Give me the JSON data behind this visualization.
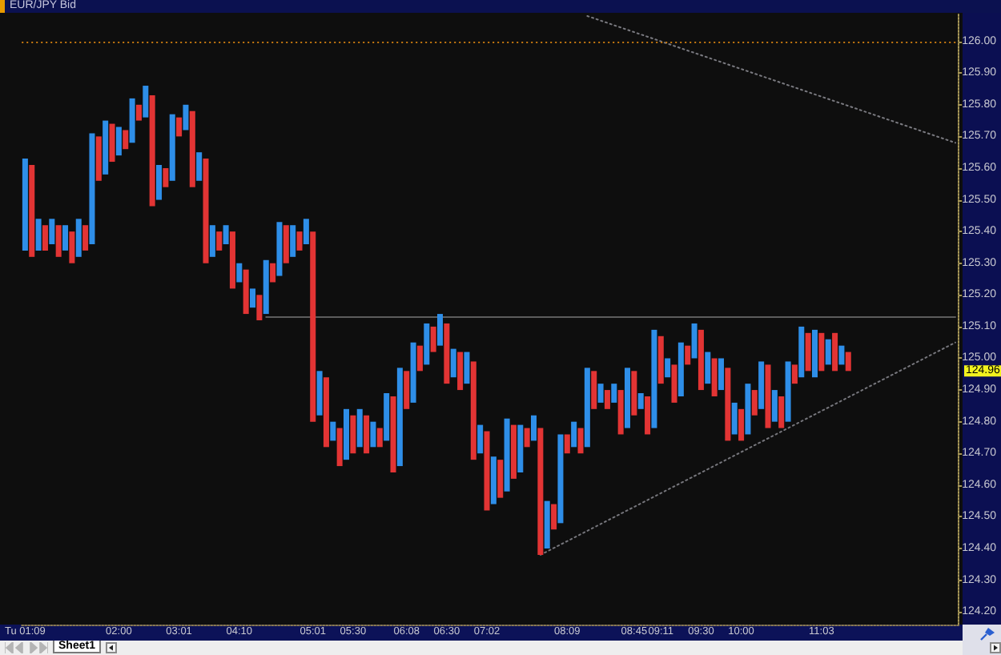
{
  "chart_data": {
    "type": "bar",
    "title": "EUR/JPY Bid",
    "categories": [
      "Tu 01:09",
      null,
      null,
      null,
      null,
      null,
      null,
      null,
      null,
      null,
      null,
      null,
      null,
      null,
      "02:00",
      null,
      null,
      null,
      null,
      null,
      null,
      null,
      null,
      "03:01",
      null,
      null,
      null,
      null,
      null,
      null,
      null,
      null,
      "04:10",
      null,
      null,
      null,
      null,
      null,
      null,
      null,
      null,
      null,
      null,
      "05:01",
      null,
      null,
      null,
      null,
      null,
      "05:30",
      null,
      null,
      null,
      null,
      null,
      null,
      null,
      "06:08",
      null,
      null,
      null,
      null,
      null,
      "06:30",
      null,
      null,
      null,
      null,
      null,
      "07:02",
      null,
      null,
      null,
      null,
      null,
      null,
      null,
      null,
      null,
      null,
      null,
      "08:09",
      null,
      null,
      null,
      null,
      null,
      null,
      null,
      null,
      null,
      "08:45",
      null,
      null,
      null,
      "09:11",
      null,
      null,
      null,
      null,
      null,
      "09:30",
      null,
      null,
      null,
      null,
      null,
      "10:00",
      null,
      null,
      null,
      null,
      null,
      null,
      null,
      null,
      null,
      null,
      null,
      "11:03",
      null,
      null,
      null,
      null,
      null,
      null,
      null,
      null,
      null,
      null,
      null,
      null,
      null,
      null,
      null,
      null,
      null,
      null,
      null,
      null
    ],
    "series": [
      {
        "type": "line",
        "color": "#7a7a80",
        "line_style": "dotted",
        "values": [
          null,
          null,
          null,
          null,
          null,
          null,
          null,
          null,
          null,
          null,
          null,
          null,
          null,
          null,
          null,
          null,
          null,
          null,
          null,
          null,
          null,
          null,
          null,
          null,
          null,
          null,
          null,
          null,
          null,
          null,
          null,
          null,
          null,
          null,
          null,
          null,
          null,
          null,
          null,
          null,
          null,
          null,
          null,
          null,
          null,
          null,
          null,
          null,
          null,
          null,
          null,
          null,
          null,
          null,
          null,
          null,
          null,
          null,
          null,
          null,
          null,
          null,
          null,
          null,
          null,
          null,
          null,
          null,
          null,
          null,
          null,
          null,
          null,
          null,
          null,
          null,
          null,
          null,
          null,
          null,
          null,
          null,
          null,
          null,
          126.08,
          null,
          null,
          null,
          null,
          null,
          null,
          null,
          null,
          null,
          null,
          null,
          null,
          null,
          null,
          null,
          null,
          null,
          null,
          null,
          null,
          null,
          null,
          null,
          null,
          null,
          null,
          null,
          null,
          null,
          null,
          null,
          null,
          null,
          null,
          null,
          null,
          null,
          null,
          null,
          null,
          null,
          null,
          null,
          null,
          null,
          null,
          null,
          null,
          null,
          null,
          null,
          null,
          null,
          null,
          125.68
        ]
      },
      {
        "type": "line",
        "color": "#76767c",
        "line_style": "dotted",
        "values": [
          null,
          null,
          null,
          null,
          null,
          null,
          null,
          null,
          null,
          null,
          null,
          null,
          null,
          null,
          null,
          null,
          null,
          null,
          null,
          null,
          null,
          null,
          null,
          null,
          null,
          null,
          null,
          null,
          null,
          null,
          null,
          null,
          null,
          null,
          null,
          null,
          null,
          null,
          null,
          null,
          null,
          null,
          null,
          null,
          null,
          null,
          null,
          null,
          null,
          null,
          null,
          null,
          null,
          null,
          null,
          null,
          null,
          null,
          null,
          null,
          null,
          null,
          null,
          null,
          null,
          null,
          null,
          null,
          null,
          null,
          null,
          null,
          null,
          null,
          null,
          null,
          null,
          124.38,
          null,
          null,
          null,
          null,
          null,
          null,
          null,
          null,
          null,
          null,
          null,
          null,
          null,
          null,
          null,
          null,
          null,
          null,
          null,
          null,
          null,
          null,
          null,
          null,
          null,
          null,
          null,
          null,
          null,
          null,
          null,
          null,
          null,
          null,
          null,
          null,
          null,
          null,
          null,
          null,
          null,
          null,
          null,
          null,
          null,
          null,
          null,
          null,
          null,
          null,
          null,
          null,
          null,
          null,
          null,
          null,
          null,
          null,
          null,
          null,
          null,
          125.05
        ]
      },
      {
        "type": "line",
        "color": "#5c5c5c",
        "values": [
          null,
          null,
          null,
          null,
          null,
          null,
          null,
          null,
          null,
          null,
          null,
          null,
          null,
          null,
          null,
          null,
          null,
          null,
          null,
          null,
          null,
          null,
          null,
          null,
          null,
          null,
          null,
          null,
          null,
          null,
          null,
          null,
          null,
          null,
          null,
          null,
          125.13,
          null,
          null,
          null,
          null,
          null,
          null,
          null,
          null,
          null,
          null,
          null,
          null,
          null,
          null,
          null,
          null,
          null,
          null,
          null,
          null,
          null,
          null,
          null,
          null,
          null,
          null,
          null,
          null,
          null,
          null,
          null,
          null,
          null,
          null,
          null,
          null,
          null,
          null,
          null,
          null,
          null,
          null,
          null,
          null,
          null,
          null,
          null,
          null,
          null,
          null,
          null,
          null,
          null,
          null,
          null,
          null,
          null,
          null,
          null,
          null,
          null,
          null,
          null,
          null,
          null,
          null,
          null,
          null,
          null,
          null,
          null,
          null,
          null,
          null,
          null,
          null,
          null,
          null,
          null,
          null,
          null,
          null,
          null,
          null,
          null,
          null,
          null,
          null,
          null,
          null,
          null,
          null,
          null,
          null,
          null,
          null,
          null,
          null,
          null,
          null,
          null,
          null,
          125.13
        ]
      },
      {
        "color": "#2e8ee8",
        "base": [
          125.34,
          null,
          125.34,
          null,
          125.36,
          null,
          125.34,
          null,
          125.32,
          null,
          125.36,
          null,
          125.58,
          null,
          125.64,
          null,
          125.68,
          null,
          125.76,
          null,
          125.5,
          null,
          125.56,
          null,
          125.72,
          null,
          125.56,
          null,
          125.32,
          null,
          125.36,
          null,
          125.24,
          null,
          125.16,
          null,
          125.14,
          null,
          125.26,
          null,
          125.32,
          null,
          125.36,
          null,
          124.82,
          null,
          124.74,
          null,
          124.68,
          null,
          124.72,
          null,
          124.72,
          null,
          124.74,
          null,
          124.66,
          null,
          124.86,
          null,
          124.98,
          null,
          125.04,
          null,
          124.94,
          null,
          124.92,
          null,
          124.7,
          null,
          124.54,
          null,
          124.58,
          null,
          124.64,
          null,
          124.74,
          null,
          124.4,
          null,
          124.48,
          null,
          124.72,
          null,
          124.72,
          null,
          124.86,
          null,
          124.86,
          null,
          124.78,
          null,
          124.84,
          null,
          124.78,
          null,
          124.94,
          null,
          124.88,
          null,
          125,
          null,
          124.92,
          null,
          124.9,
          null,
          124.76,
          null,
          124.76,
          null,
          124.84,
          null,
          124.8,
          null,
          124.8,
          null,
          124.94,
          null,
          124.94,
          null,
          124.98,
          null,
          124.98,
          null,
          null,
          null,
          null,
          null,
          null,
          null,
          null,
          null,
          null,
          null,
          null,
          null,
          null,
          null,
          null,
          null
        ],
        "values": [
          0.29,
          null,
          0.1,
          null,
          0.08,
          null,
          0.08,
          null,
          0.12,
          null,
          0.35,
          null,
          0.17,
          null,
          0.09,
          null,
          0.14,
          null,
          0.1,
          null,
          0.11,
          null,
          0.21,
          null,
          0.08,
          null,
          0.09,
          null,
          0.1,
          null,
          0.06,
          null,
          0.06,
          null,
          0.06,
          null,
          0.17,
          null,
          0.17,
          null,
          0.1,
          null,
          0.08,
          null,
          0.14,
          null,
          0.06,
          null,
          0.16,
          null,
          0.12,
          null,
          0.08,
          null,
          0.15,
          null,
          0.31,
          null,
          0.19,
          null,
          0.13,
          null,
          0.1,
          null,
          0.09,
          null,
          0.1,
          null,
          0.09,
          null,
          0.15,
          null,
          0.23,
          null,
          0.15,
          null,
          0.08,
          null,
          0.15,
          null,
          0.28,
          null,
          0.08,
          null,
          0.25,
          null,
          0.06,
          null,
          0.06,
          null,
          0.19,
          null,
          0.05,
          null,
          0.31,
          null,
          0.06,
          null,
          0.17,
          null,
          0.11,
          null,
          0.1,
          null,
          0.1,
          null,
          0.1,
          null,
          0.16,
          null,
          0.15,
          null,
          0.1,
          null,
          0.19,
          null,
          0.16,
          null,
          0.15,
          null,
          0.08,
          null,
          0.06,
          null,
          null,
          null,
          null,
          null,
          null,
          null,
          null,
          null,
          null,
          null,
          null,
          null,
          null,
          null,
          null,
          null
        ]
      },
      {
        "color": "#e23434",
        "base": [
          null,
          125.32,
          null,
          125.34,
          null,
          125.32,
          null,
          125.3,
          null,
          125.34,
          null,
          125.56,
          null,
          125.62,
          null,
          125.66,
          null,
          125.75,
          null,
          125.48,
          null,
          125.54,
          null,
          125.7,
          null,
          125.54,
          null,
          125.3,
          null,
          125.34,
          null,
          125.22,
          null,
          125.14,
          null,
          125.12,
          null,
          125.24,
          null,
          125.3,
          null,
          125.34,
          null,
          124.8,
          null,
          124.72,
          null,
          124.66,
          null,
          124.7,
          null,
          124.7,
          null,
          124.72,
          null,
          124.64,
          null,
          124.84,
          null,
          124.96,
          null,
          125.02,
          null,
          124.92,
          null,
          124.9,
          null,
          124.68,
          null,
          124.52,
          null,
          124.56,
          null,
          124.62,
          null,
          124.72,
          null,
          124.38,
          null,
          124.46,
          null,
          124.7,
          null,
          124.7,
          null,
          124.84,
          null,
          124.84,
          null,
          124.76,
          null,
          124.82,
          null,
          124.76,
          null,
          124.92,
          null,
          124.86,
          null,
          124.98,
          null,
          124.9,
          null,
          124.88,
          null,
          124.74,
          null,
          124.74,
          null,
          124.82,
          null,
          124.78,
          null,
          124.78,
          null,
          124.92,
          null,
          124.96,
          null,
          124.96,
          null,
          124.96,
          null,
          124.96,
          null,
          null,
          null,
          null,
          null,
          null,
          null,
          null,
          null,
          null,
          null,
          null,
          null,
          null,
          null,
          null
        ],
        "values": [
          null,
          0.29,
          null,
          0.08,
          null,
          0.1,
          null,
          0.1,
          null,
          0.08,
          null,
          0.14,
          null,
          0.12,
          null,
          0.06,
          null,
          0.05,
          null,
          0.35,
          null,
          0.06,
          null,
          0.06,
          null,
          0.24,
          null,
          0.33,
          null,
          0.06,
          null,
          0.18,
          null,
          0.14,
          null,
          0.08,
          null,
          0.06,
          null,
          0.12,
          null,
          0.06,
          null,
          0.6,
          null,
          0.22,
          null,
          0.12,
          null,
          0.12,
          null,
          0.12,
          null,
          0.06,
          null,
          0.24,
          null,
          0.12,
          null,
          0.08,
          null,
          0.08,
          null,
          0.19,
          null,
          0.12,
          null,
          0.31,
          null,
          0.25,
          null,
          0.12,
          null,
          0.17,
          null,
          0.06,
          null,
          0.4,
          null,
          0.08,
          null,
          0.06,
          null,
          0.08,
          null,
          0.12,
          null,
          0.06,
          null,
          0.14,
          null,
          0.14,
          null,
          0.12,
          null,
          0.15,
          null,
          0.12,
          null,
          0.06,
          null,
          0.19,
          null,
          0.12,
          null,
          0.23,
          null,
          0.1,
          null,
          0.08,
          null,
          0.2,
          null,
          0.1,
          null,
          0.06,
          null,
          0.12,
          null,
          0.12,
          null,
          0.12,
          null,
          0.06,
          null,
          null,
          null,
          null,
          null,
          null,
          null,
          null,
          null,
          null,
          null,
          null,
          null,
          null,
          null,
          null
        ]
      }
    ],
    "ylim": [
      124.16,
      126.09
    ],
    "yticks": [
      {
        "value": 124.2,
        "label": "124.20"
      },
      {
        "value": 124.3,
        "label": "124.30"
      },
      {
        "value": 124.4,
        "label": "124.40"
      },
      {
        "value": 124.5,
        "label": "124.50"
      },
      {
        "value": 124.6,
        "label": "124.60"
      },
      {
        "value": 124.7,
        "label": "124.70"
      },
      {
        "value": 124.8,
        "label": "124.80"
      },
      {
        "value": 124.9,
        "label": "124.90"
      },
      {
        "value": 125,
        "label": "125.00"
      },
      {
        "value": 125.1,
        "label": "125.10"
      },
      {
        "value": 125.2,
        "label": "125.20"
      },
      {
        "value": 125.3,
        "label": "125.30"
      },
      {
        "value": 125.4,
        "label": "125.40"
      },
      {
        "value": 125.5,
        "label": "125.50"
      },
      {
        "value": 125.6,
        "label": "125.60"
      },
      {
        "value": 125.7,
        "label": "125.70"
      },
      {
        "value": 125.8,
        "label": "125.80"
      },
      {
        "value": 125.9,
        "label": "125.90"
      },
      {
        "value": 126,
        "label": "126.00"
      }
    ],
    "ref_lines": [
      {
        "axis": "y",
        "value": 126,
        "color": "#c87a10",
        "line_style": "dotted"
      }
    ],
    "marker": "none",
    "annotations": [
      "Sheet1",
      "124.96"
    ]
  }
}
